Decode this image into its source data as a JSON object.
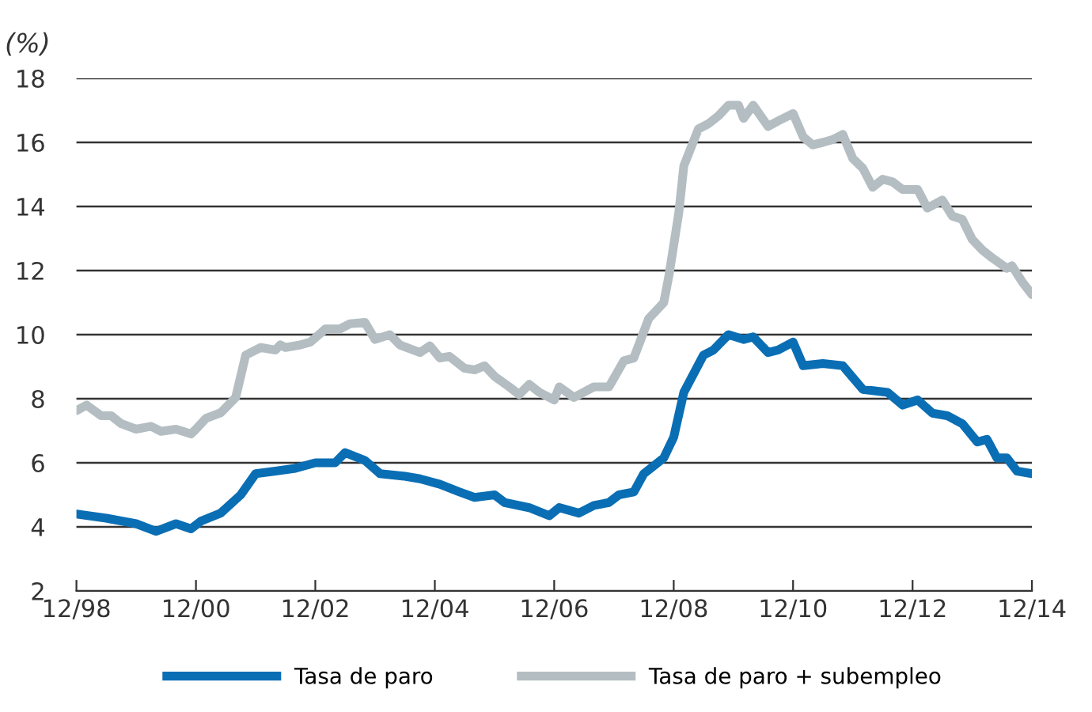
{
  "chart_data": {
    "type": "line",
    "ylabel": "(%)",
    "ylim": [
      2,
      18
    ],
    "yticks": [
      2,
      4,
      6,
      8,
      10,
      12,
      14,
      16,
      18
    ],
    "xlim": [
      "1998-12",
      "2014-12"
    ],
    "xticks": [
      {
        "value": "1998-12",
        "label": "12/98"
      },
      {
        "value": "2000-12",
        "label": "12/00"
      },
      {
        "value": "2002-12",
        "label": "12/02"
      },
      {
        "value": "2004-12",
        "label": "12/04"
      },
      {
        "value": "2006-12",
        "label": "12/06"
      },
      {
        "value": "2008-12",
        "label": "12/08"
      },
      {
        "value": "2010-12",
        "label": "12/10"
      },
      {
        "value": "2012-12",
        "label": "12/12"
      },
      {
        "value": "2014-12",
        "label": "12/14"
      }
    ],
    "grid": "y",
    "legend": "bottom",
    "line_style": "solid",
    "marker": "none",
    "series": [
      {
        "name": "Tasa de paro",
        "color": "#0a6eb4",
        "x": [
          "1998-12",
          "1999-06",
          "1999-12",
          "2000-04",
          "2000-08",
          "2000-11",
          "2001-01",
          "2001-05",
          "2001-09",
          "2001-12",
          "2002-04",
          "2002-08",
          "2002-12",
          "2003-04",
          "2003-06",
          "2003-10",
          "2004-01",
          "2004-06",
          "2004-09",
          "2005-01",
          "2005-05",
          "2005-08",
          "2005-12",
          "2006-02",
          "2006-07",
          "2006-11",
          "2007-01",
          "2007-05",
          "2007-08",
          "2007-11",
          "2008-01",
          "2008-04",
          "2008-06",
          "2008-10",
          "2008-12",
          "2009-02",
          "2009-06",
          "2009-08",
          "2009-11",
          "2010-02",
          "2010-04",
          "2010-07",
          "2010-09",
          "2010-12",
          "2011-02",
          "2011-06",
          "2011-10",
          "2012-02",
          "2012-07",
          "2012-10",
          "2013-01",
          "2013-04",
          "2013-07",
          "2013-10",
          "2014-01",
          "2014-03",
          "2014-05",
          "2014-07",
          "2014-09",
          "2014-12"
        ],
        "values": [
          4.4,
          4.27,
          4.1,
          3.86,
          4.1,
          3.94,
          4.18,
          4.43,
          5.0,
          5.66,
          5.74,
          5.83,
          6.0,
          6.0,
          6.32,
          6.07,
          5.66,
          5.58,
          5.5,
          5.33,
          5.09,
          4.92,
          5.0,
          4.76,
          4.6,
          4.35,
          4.6,
          4.43,
          4.67,
          4.76,
          5.0,
          5.09,
          5.66,
          6.15,
          6.8,
          8.2,
          9.36,
          9.52,
          10.0,
          9.85,
          9.93,
          9.44,
          9.52,
          9.77,
          9.03,
          9.1,
          9.03,
          8.29,
          8.2,
          7.8,
          7.96,
          7.55,
          7.47,
          7.22,
          6.65,
          6.73,
          6.15,
          6.15,
          5.74,
          5.66
        ]
      },
      {
        "name": "Tasa de paro + subempleo",
        "color": "#b4bec2",
        "x": [
          "1998-12",
          "1999-02",
          "1999-05",
          "1999-07",
          "1999-09",
          "1999-12",
          "2000-03",
          "2000-05",
          "2000-08",
          "2000-11",
          "2000-12",
          "2001-02",
          "2001-05",
          "2001-08",
          "2001-10",
          "2002-01",
          "2002-04",
          "2002-05",
          "2002-06",
          "2002-09",
          "2002-11",
          "2003-02",
          "2003-05",
          "2003-07",
          "2003-10",
          "2003-12",
          "2004-03",
          "2004-05",
          "2004-09",
          "2004-11",
          "2005-01",
          "2005-03",
          "2005-06",
          "2005-08",
          "2005-10",
          "2005-12",
          "2006-03",
          "2006-05",
          "2006-07",
          "2006-09",
          "2006-11",
          "2006-12",
          "2007-01",
          "2007-04",
          "2007-08",
          "2007-11",
          "2008-02",
          "2008-04",
          "2008-07",
          "2008-10",
          "2008-11",
          "2009-01",
          "2009-02",
          "2009-05",
          "2009-07",
          "2009-09",
          "2009-11",
          "2010-01",
          "2010-02",
          "2010-04",
          "2010-07",
          "2010-09",
          "2010-12",
          "2011-02",
          "2011-04",
          "2011-06",
          "2011-08",
          "2011-10",
          "2011-12",
          "2012-02",
          "2012-04",
          "2012-06",
          "2012-08",
          "2012-10",
          "2013-01",
          "2013-03",
          "2013-06",
          "2013-08",
          "2013-10",
          "2013-12",
          "2014-02",
          "2014-04",
          "2014-07",
          "2014-08",
          "2014-10",
          "2014-12"
        ],
        "values": [
          7.63,
          7.8,
          7.47,
          7.47,
          7.22,
          7.05,
          7.14,
          6.98,
          7.05,
          6.9,
          7.05,
          7.39,
          7.56,
          8.04,
          9.36,
          9.6,
          9.52,
          9.68,
          9.6,
          9.68,
          9.77,
          10.18,
          10.18,
          10.34,
          10.38,
          9.85,
          10.0,
          9.68,
          9.44,
          9.65,
          9.27,
          9.32,
          8.95,
          8.9,
          9.03,
          8.7,
          8.37,
          8.13,
          8.45,
          8.2,
          8.04,
          7.96,
          8.37,
          8.04,
          8.37,
          8.37,
          9.19,
          9.27,
          10.5,
          11.0,
          11.82,
          13.8,
          15.27,
          16.42,
          16.58,
          16.83,
          17.16,
          17.16,
          16.75,
          17.16,
          16.5,
          16.67,
          16.9,
          16.17,
          15.92,
          16.0,
          16.09,
          16.25,
          15.5,
          15.19,
          14.6,
          14.85,
          14.77,
          14.53,
          14.53,
          13.95,
          14.2,
          13.7,
          13.6,
          12.97,
          12.64,
          12.4,
          12.07,
          12.15,
          11.66,
          11.25
        ]
      }
    ]
  }
}
